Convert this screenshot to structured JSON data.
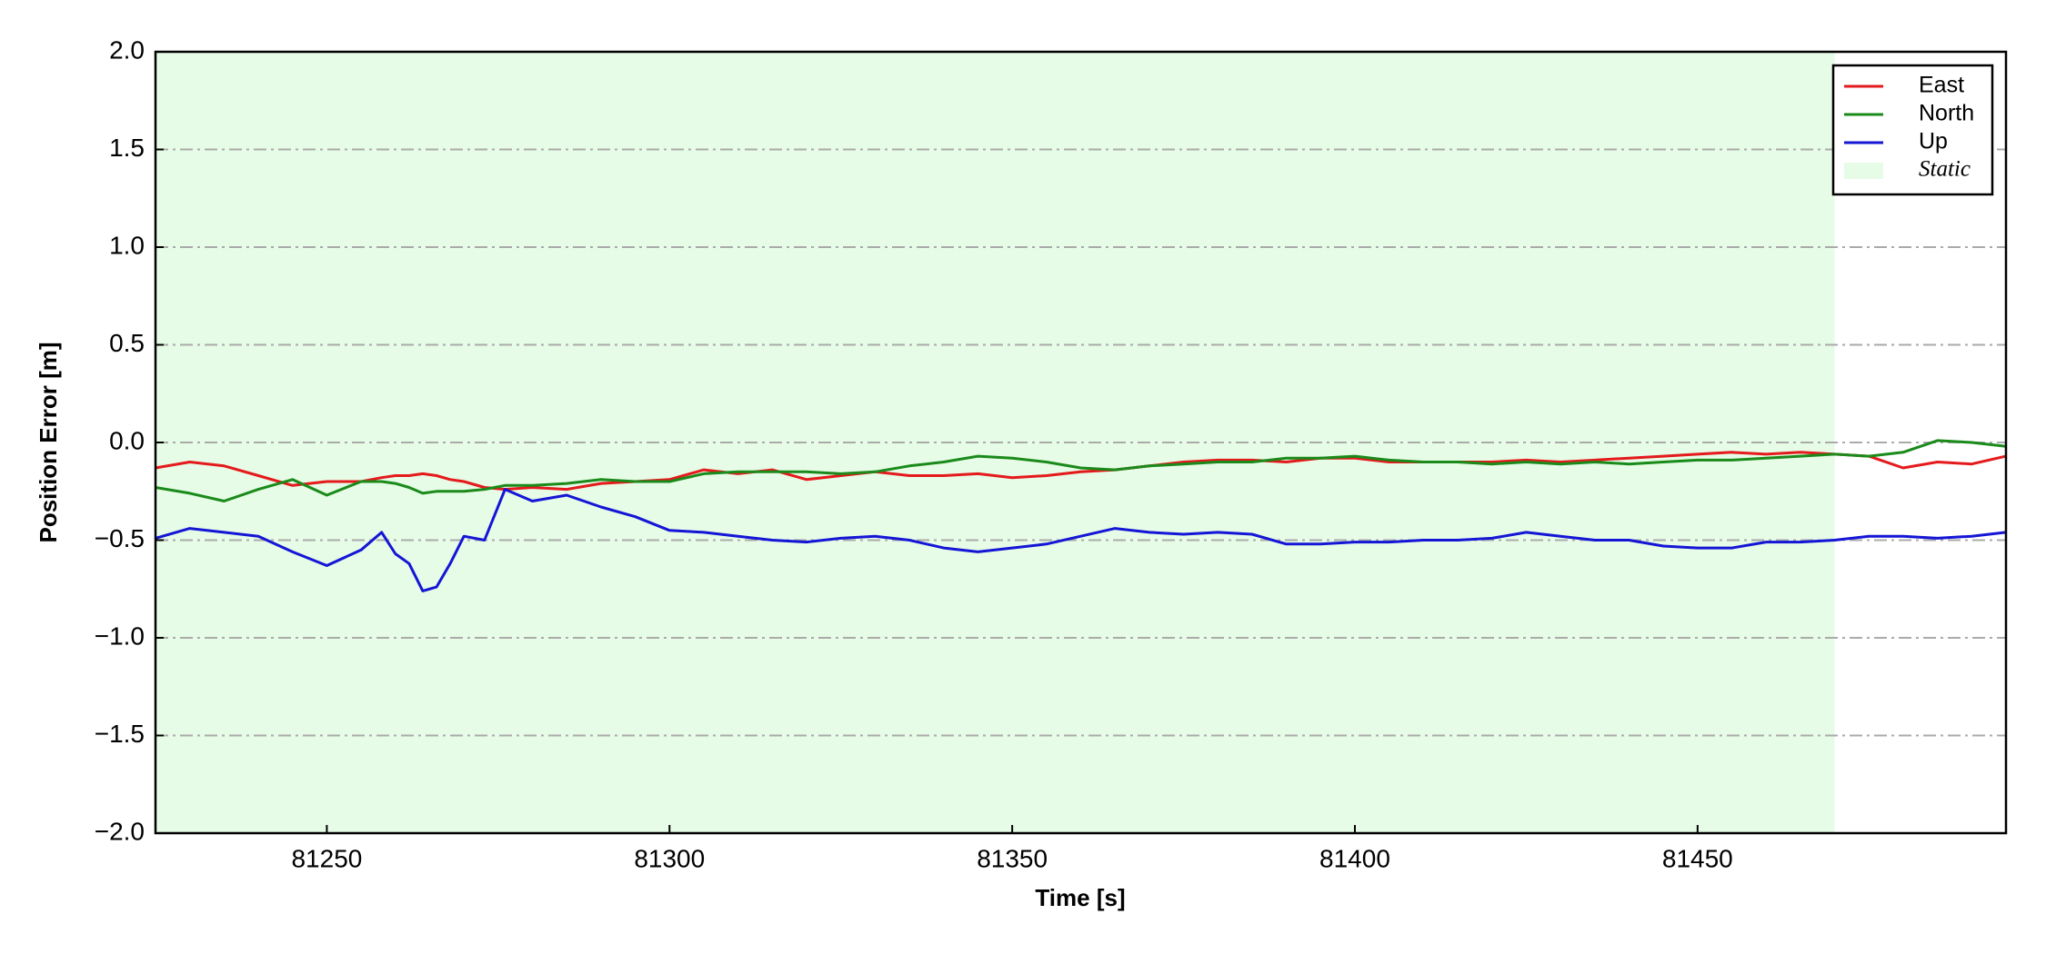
{
  "chart_data": {
    "type": "line",
    "xlabel": "Time [s]",
    "ylabel": "Position Error [m]",
    "x": [
      81225,
      81230,
      81235,
      81240,
      81245,
      81250,
      81255,
      81258,
      81260,
      81262,
      81264,
      81266,
      81268,
      81270,
      81273,
      81276,
      81280,
      81285,
      81290,
      81295,
      81300,
      81305,
      81310,
      81315,
      81320,
      81325,
      81330,
      81335,
      81340,
      81345,
      81350,
      81355,
      81360,
      81365,
      81370,
      81375,
      81380,
      81385,
      81390,
      81395,
      81400,
      81405,
      81410,
      81415,
      81420,
      81425,
      81430,
      81435,
      81440,
      81445,
      81450,
      81455,
      81460,
      81465,
      81470,
      81475,
      81480,
      81485,
      81490,
      81495
    ],
    "series": [
      {
        "name": "East",
        "color": "#e41a1c",
        "values": [
          -0.13,
          -0.1,
          -0.12,
          -0.17,
          -0.22,
          -0.2,
          -0.2,
          -0.18,
          -0.17,
          -0.17,
          -0.16,
          -0.17,
          -0.19,
          -0.2,
          -0.23,
          -0.24,
          -0.23,
          -0.24,
          -0.21,
          -0.2,
          -0.19,
          -0.14,
          -0.16,
          -0.14,
          -0.19,
          -0.17,
          -0.15,
          -0.17,
          -0.17,
          -0.16,
          -0.18,
          -0.17,
          -0.15,
          -0.14,
          -0.12,
          -0.1,
          -0.09,
          -0.09,
          -0.1,
          -0.08,
          -0.08,
          -0.1,
          -0.1,
          -0.1,
          -0.1,
          -0.09,
          -0.1,
          -0.09,
          -0.08,
          -0.07,
          -0.06,
          -0.05,
          -0.06,
          -0.05,
          -0.06,
          -0.07,
          -0.13,
          -0.1,
          -0.11,
          -0.07
        ]
      },
      {
        "name": "North",
        "color": "#1a8a1a",
        "values": [
          -0.23,
          -0.26,
          -0.3,
          -0.24,
          -0.19,
          -0.27,
          -0.2,
          -0.2,
          -0.21,
          -0.23,
          -0.26,
          -0.25,
          -0.25,
          -0.25,
          -0.24,
          -0.22,
          -0.22,
          -0.21,
          -0.19,
          -0.2,
          -0.2,
          -0.16,
          -0.15,
          -0.15,
          -0.15,
          -0.16,
          -0.15,
          -0.12,
          -0.1,
          -0.07,
          -0.08,
          -0.1,
          -0.13,
          -0.14,
          -0.12,
          -0.11,
          -0.1,
          -0.1,
          -0.08,
          -0.08,
          -0.07,
          -0.09,
          -0.1,
          -0.1,
          -0.11,
          -0.1,
          -0.11,
          -0.1,
          -0.11,
          -0.1,
          -0.09,
          -0.09,
          -0.08,
          -0.07,
          -0.06,
          -0.07,
          -0.05,
          0.01,
          0,
          -0.02
        ]
      },
      {
        "name": "Up",
        "color": "#1515d6",
        "values": [
          -0.49,
          -0.44,
          -0.46,
          -0.48,
          -0.56,
          -0.63,
          -0.55,
          -0.46,
          -0.57,
          -0.62,
          -0.76,
          -0.74,
          -0.62,
          -0.48,
          -0.5,
          -0.24,
          -0.3,
          -0.27,
          -0.33,
          -0.38,
          -0.45,
          -0.46,
          -0.48,
          -0.5,
          -0.51,
          -0.49,
          -0.48,
          -0.5,
          -0.54,
          -0.56,
          -0.54,
          -0.52,
          -0.48,
          -0.44,
          -0.46,
          -0.47,
          -0.46,
          -0.47,
          -0.52,
          -0.52,
          -0.51,
          -0.51,
          -0.5,
          -0.5,
          -0.49,
          -0.46,
          -0.48,
          -0.5,
          -0.5,
          -0.53,
          -0.54,
          -0.54,
          -0.51,
          -0.51,
          -0.5,
          -0.48,
          -0.48,
          -0.49,
          -0.48,
          -0.46
        ]
      }
    ],
    "spans": [
      {
        "name": "Static",
        "x0": 81225,
        "x1": 81470,
        "color": "#e6fce6"
      }
    ],
    "xlim": [
      81225,
      81495
    ],
    "xticks": [
      81250,
      81300,
      81350,
      81400,
      81450
    ],
    "ylim": [
      -2,
      2
    ],
    "yticks": [
      {
        "value": -2,
        "label": "−2.0"
      },
      {
        "value": -1.5,
        "label": "−1.5"
      },
      {
        "value": -1,
        "label": "−1.0"
      },
      {
        "value": -0.5,
        "label": "−0.5"
      },
      {
        "value": 0,
        "label": "0.0"
      },
      {
        "value": 0.5,
        "label": "0.5"
      },
      {
        "value": 1,
        "label": "1.0"
      },
      {
        "value": 1.5,
        "label": "1.5"
      },
      {
        "value": 2,
        "label": "2.0"
      }
    ],
    "grid": true,
    "legend": "upper right"
  }
}
